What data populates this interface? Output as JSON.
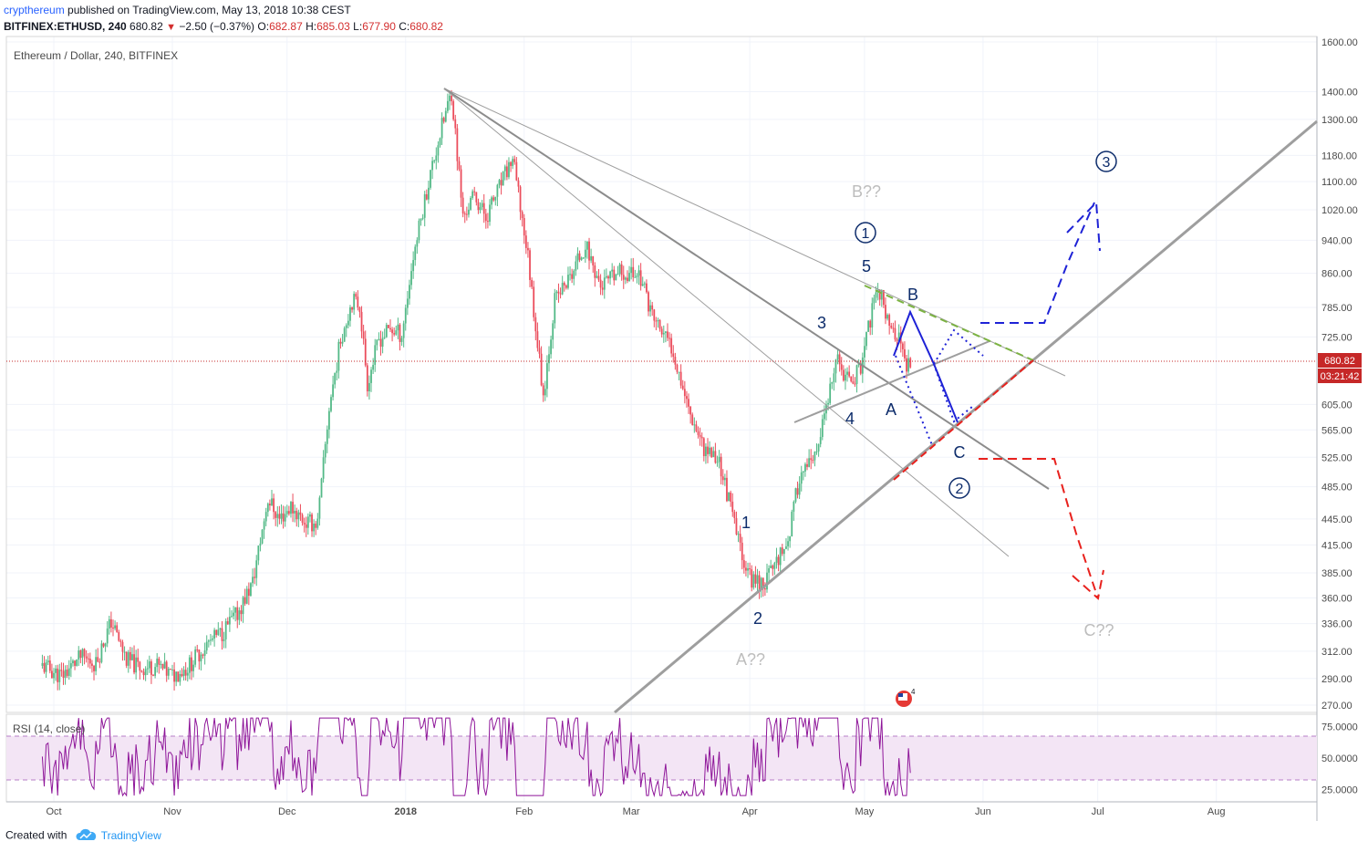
{
  "header": {
    "author": "crypthereum",
    "published": "published on TradingView.com, May 13, 2018 10:38 CEST",
    "symbol": "BITFINEX:ETHUSD, 240",
    "last": "680.82",
    "change": "−2.50 (−0.37%)",
    "open_label": "O:",
    "open": "682.87",
    "high_label": "H:",
    "high": "685.03",
    "low_label": "L:",
    "low": "677.90",
    "close_label": "C:",
    "close": "680.82"
  },
  "footer": {
    "created_with": "Created with",
    "brand": "TradingView"
  },
  "colors": {
    "up": "#53b987",
    "down": "#eb4d5c",
    "trend": "#9e9e9e",
    "blue": "#1e22d6",
    "navy": "#0d2c6b",
    "red_dash": "#e8211d",
    "green_dash": "#7cb342",
    "rsi_line": "#8e1599",
    "rsi_band": "#f3e5f5",
    "price_line": "#c62828"
  },
  "chart_data": {
    "type": "candlestick",
    "title": "Ethereum / Dollar, 240, BITFINEX",
    "y_scale": "log",
    "ylim": [
      260,
      1650
    ],
    "y_ticks": [
      "1600.00",
      "1400.00",
      "1300.00",
      "1180.00",
      "1100.00",
      "1020.00",
      "940.00",
      "860.00",
      "785.00",
      "725.00",
      "605.00",
      "565.00",
      "525.00",
      "485.00",
      "445.00",
      "415.00",
      "385.00",
      "360.00",
      "336.00",
      "312.00",
      "290.00",
      "270.00"
    ],
    "x_ticks": [
      "Oct",
      "Nov",
      "Dec",
      "2018",
      "Feb",
      "Mar",
      "Apr",
      "May",
      "Jun",
      "Jul",
      "Aug"
    ],
    "last_price": "680.82",
    "countdown": "03:21:42",
    "price_path": [
      {
        "x": "2017-09-28",
        "y": 300
      },
      {
        "x": "2017-10-03",
        "y": 292
      },
      {
        "x": "2017-10-08",
        "y": 307
      },
      {
        "x": "2017-10-12",
        "y": 302
      },
      {
        "x": "2017-10-16",
        "y": 338
      },
      {
        "x": "2017-10-20",
        "y": 305
      },
      {
        "x": "2017-10-24",
        "y": 298
      },
      {
        "x": "2017-10-28",
        "y": 300
      },
      {
        "x": "2017-11-01",
        "y": 292
      },
      {
        "x": "2017-11-05",
        "y": 299
      },
      {
        "x": "2017-11-10",
        "y": 318
      },
      {
        "x": "2017-11-14",
        "y": 328
      },
      {
        "x": "2017-11-18",
        "y": 345
      },
      {
        "x": "2017-11-22",
        "y": 375
      },
      {
        "x": "2017-11-26",
        "y": 470
      },
      {
        "x": "2017-11-29",
        "y": 445
      },
      {
        "x": "2017-12-02",
        "y": 460
      },
      {
        "x": "2017-12-06",
        "y": 440
      },
      {
        "x": "2017-12-09",
        "y": 440
      },
      {
        "x": "2017-12-12",
        "y": 600
      },
      {
        "x": "2017-12-15",
        "y": 720
      },
      {
        "x": "2017-12-18",
        "y": 800
      },
      {
        "x": "2017-12-20",
        "y": 790
      },
      {
        "x": "2017-12-22",
        "y": 640
      },
      {
        "x": "2017-12-25",
        "y": 720
      },
      {
        "x": "2017-12-28",
        "y": 740
      },
      {
        "x": "2017-12-31",
        "y": 730
      },
      {
        "x": "2018-01-03",
        "y": 900
      },
      {
        "x": "2018-01-07",
        "y": 1100
      },
      {
        "x": "2018-01-10",
        "y": 1250
      },
      {
        "x": "2018-01-13",
        "y": 1400
      },
      {
        "x": "2018-01-16",
        "y": 1000
      },
      {
        "x": "2018-01-19",
        "y": 1060
      },
      {
        "x": "2018-01-22",
        "y": 1000
      },
      {
        "x": "2018-01-25",
        "y": 1070
      },
      {
        "x": "2018-01-29",
        "y": 1170
      },
      {
        "x": "2018-02-02",
        "y": 900
      },
      {
        "x": "2018-02-06",
        "y": 620
      },
      {
        "x": "2018-02-09",
        "y": 800
      },
      {
        "x": "2018-02-13",
        "y": 850
      },
      {
        "x": "2018-02-17",
        "y": 930
      },
      {
        "x": "2018-02-21",
        "y": 830
      },
      {
        "x": "2018-02-26",
        "y": 860
      },
      {
        "x": "2018-03-03",
        "y": 860
      },
      {
        "x": "2018-03-07",
        "y": 760
      },
      {
        "x": "2018-03-12",
        "y": 700
      },
      {
        "x": "2018-03-16",
        "y": 600
      },
      {
        "x": "2018-03-20",
        "y": 540
      },
      {
        "x": "2018-03-24",
        "y": 520
      },
      {
        "x": "2018-03-29",
        "y": 420
      },
      {
        "x": "2018-04-01",
        "y": 380
      },
      {
        "x": "2018-04-05",
        "y": 375
      },
      {
        "x": "2018-04-08",
        "y": 400
      },
      {
        "x": "2018-04-11",
        "y": 420
      },
      {
        "x": "2018-04-14",
        "y": 500
      },
      {
        "x": "2018-04-18",
        "y": 520
      },
      {
        "x": "2018-04-21",
        "y": 600
      },
      {
        "x": "2018-04-24",
        "y": 680
      },
      {
        "x": "2018-04-27",
        "y": 640
      },
      {
        "x": "2018-04-30",
        "y": 670
      },
      {
        "x": "2018-05-03",
        "y": 780
      },
      {
        "x": "2018-05-05",
        "y": 820
      },
      {
        "x": "2018-05-08",
        "y": 740
      },
      {
        "x": "2018-05-10",
        "y": 720
      },
      {
        "x": "2018-05-12",
        "y": 660
      },
      {
        "x": "2018-05-13",
        "y": 681
      }
    ],
    "annotations": {
      "wave_labels": [
        "1",
        "2",
        "3",
        "4",
        "5",
        "A",
        "B",
        "C"
      ],
      "circled_labels": [
        "1",
        "2",
        "3"
      ],
      "scenario_labels": [
        "B??",
        "A??",
        "C??"
      ]
    },
    "rsi": {
      "label": "RSI (14, close)",
      "ticks": [
        "75.0000",
        "50.0000",
        "25.0000"
      ],
      "band": [
        30,
        70
      ],
      "ylim": [
        15,
        85
      ]
    }
  }
}
